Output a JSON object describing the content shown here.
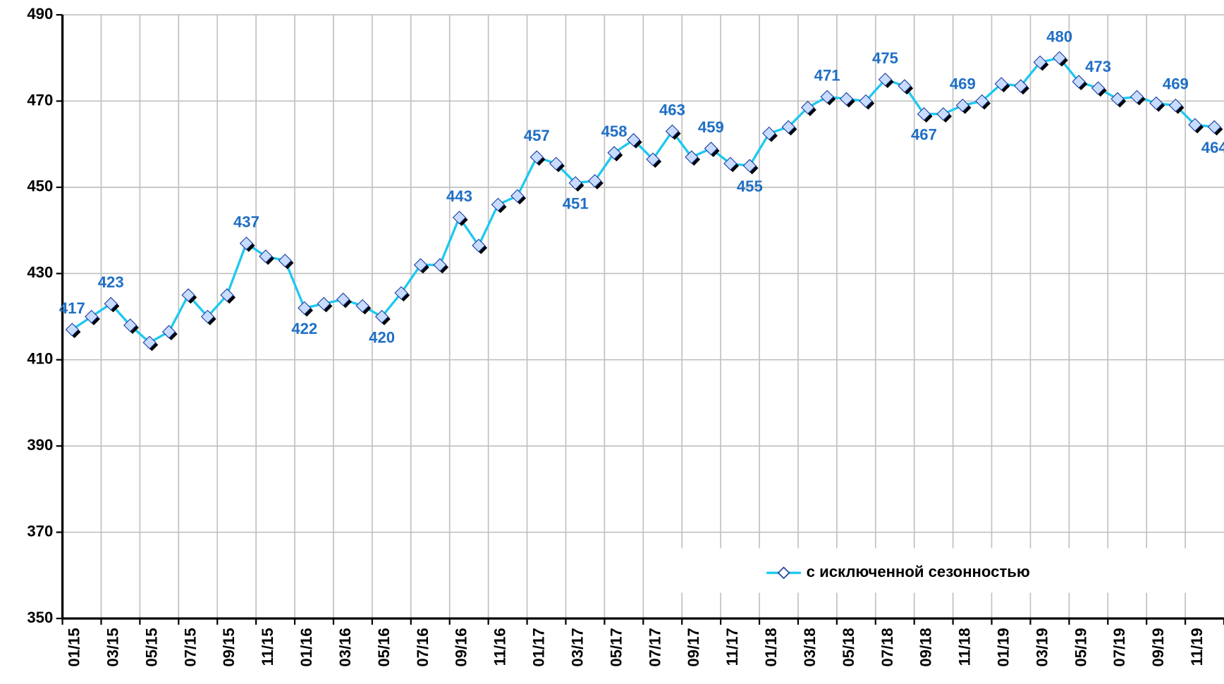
{
  "chart_data": {
    "type": "line",
    "categories": [
      "01/15",
      null,
      "03/15",
      null,
      "05/15",
      null,
      "07/15",
      null,
      "09/15",
      null,
      "11/15",
      null,
      "01/16",
      null,
      "03/16",
      null,
      "05/16",
      null,
      "07/16",
      null,
      "09/16",
      null,
      "11/16",
      null,
      "01/17",
      null,
      "03/17",
      null,
      "05/17",
      null,
      "07/17",
      null,
      "09/17",
      null,
      "11/17",
      null,
      "01/18",
      null,
      "03/18",
      null,
      "05/18",
      null,
      "07/18",
      null,
      "09/18",
      null,
      "11/18",
      null,
      "01/19",
      null,
      "03/19",
      null,
      "05/19",
      null,
      "07/19",
      null,
      "09/19",
      null,
      "11/19",
      null
    ],
    "series": [
      {
        "name": "с исключенной сезонностью",
        "color": "#1ec8f0",
        "marker_fill": "#c8dcff",
        "marker_stroke": "#1a3ca0",
        "values": [
          417,
          420,
          423,
          418,
          414,
          416.5,
          425,
          420,
          425,
          437,
          434,
          433,
          422,
          423,
          424,
          422.5,
          420,
          425.5,
          432,
          432,
          443,
          436.5,
          446,
          448,
          457,
          455.5,
          451,
          451.5,
          458,
          461,
          456.5,
          463,
          457,
          459,
          455.5,
          455,
          462.5,
          464,
          468.5,
          471,
          470.5,
          470,
          475,
          473.5,
          467,
          467,
          469,
          470,
          474,
          473.5,
          479,
          480,
          474.5,
          473,
          470.5,
          471,
          469.5,
          469,
          464.5,
          464
        ],
        "value_labels": [
          "417",
          null,
          "423",
          null,
          null,
          null,
          null,
          null,
          null,
          "437",
          null,
          null,
          "422",
          null,
          null,
          null,
          "420",
          null,
          null,
          null,
          "443",
          null,
          null,
          null,
          "457",
          null,
          "451",
          null,
          "458",
          null,
          null,
          "463",
          null,
          "459",
          null,
          "455",
          null,
          null,
          null,
          "471",
          null,
          null,
          "475",
          null,
          "467",
          null,
          "469",
          null,
          null,
          null,
          null,
          "480",
          null,
          "473",
          null,
          null,
          null,
          "469",
          null,
          "464"
        ],
        "label_color": "#1f6fc5"
      }
    ],
    "ylim": [
      350,
      490
    ],
    "yticks": [
      350,
      370,
      390,
      410,
      430,
      450,
      470,
      490
    ],
    "grid": true,
    "legend": "lower right"
  }
}
